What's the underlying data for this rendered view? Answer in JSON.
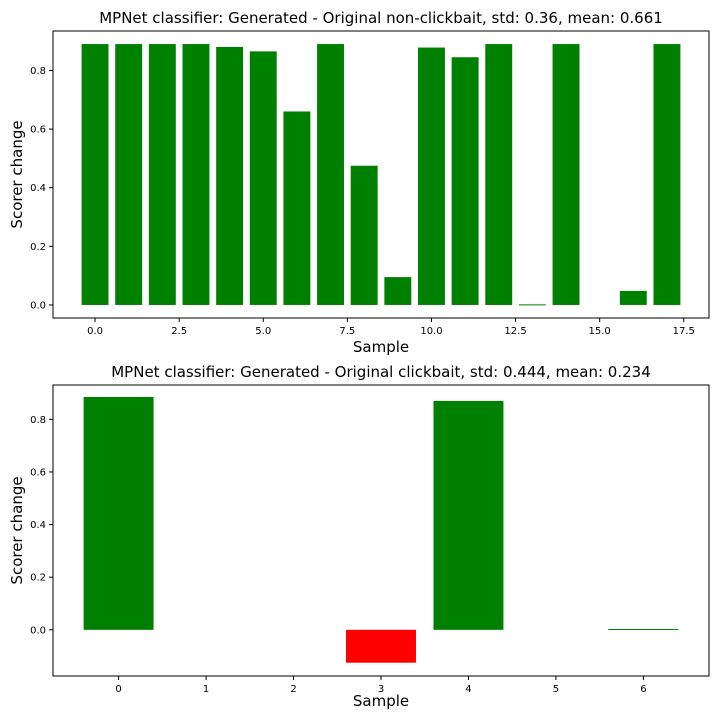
{
  "chart_data": [
    {
      "type": "bar",
      "title": "MPNet classifier: Generated - Original non-clickbait, std: 0.36, mean: 0.661",
      "xlabel": "Sample",
      "ylabel": "Scorer change",
      "x": [
        0,
        1,
        2,
        3,
        4,
        5,
        6,
        7,
        8,
        9,
        10,
        11,
        12,
        13,
        14,
        15,
        16,
        17
      ],
      "values": [
        0.89,
        0.89,
        0.89,
        0.89,
        0.88,
        0.865,
        0.66,
        0.89,
        0.475,
        0.095,
        0.878,
        0.845,
        0.89,
        0.002,
        0.89,
        0.0,
        0.048,
        0.89
      ],
      "colors": [
        "#008000",
        "#008000",
        "#008000",
        "#008000",
        "#008000",
        "#008000",
        "#008000",
        "#008000",
        "#008000",
        "#008000",
        "#008000",
        "#008000",
        "#008000",
        "#008000",
        "#008000",
        "#008000",
        "#008000",
        "#008000"
      ],
      "xticks": [
        0.0,
        2.5,
        5.0,
        7.5,
        10.0,
        12.5,
        15.0,
        17.5
      ],
      "xtick_labels": [
        "0.0",
        "2.5",
        "5.0",
        "7.5",
        "10.0",
        "12.5",
        "15.0",
        "17.5"
      ],
      "yticks": [
        0.0,
        0.2,
        0.4,
        0.6,
        0.8
      ],
      "ytick_labels": [
        "0.0",
        "0.2",
        "0.4",
        "0.6",
        "0.8"
      ],
      "xlim": [
        -1.25,
        18.25
      ],
      "ylim": [
        -0.0445,
        0.9345
      ],
      "grid": false
    },
    {
      "type": "bar",
      "title": "MPNet classifier: Generated - Original clickbait, std: 0.444, mean: 0.234",
      "xlabel": "Sample",
      "ylabel": "Scorer change",
      "x": [
        0,
        1,
        2,
        3,
        4,
        5,
        6
      ],
      "values": [
        0.885,
        0.0,
        0.0,
        -0.125,
        0.87,
        0.0,
        0.003
      ],
      "colors": [
        "#008000",
        "#008000",
        "#008000",
        "#ff0000",
        "#008000",
        "#008000",
        "#008000"
      ],
      "xticks": [
        0,
        1,
        2,
        3,
        4,
        5,
        6
      ],
      "xtick_labels": [
        "0",
        "1",
        "2",
        "3",
        "4",
        "5",
        "6"
      ],
      "yticks": [
        0.0,
        0.2,
        0.4,
        0.6,
        0.8
      ],
      "ytick_labels": [
        "0.0",
        "0.2",
        "0.4",
        "0.6",
        "0.8"
      ],
      "xlim": [
        -0.75,
        6.75
      ],
      "ylim": [
        -0.1755,
        0.9305
      ],
      "grid": false
    }
  ]
}
